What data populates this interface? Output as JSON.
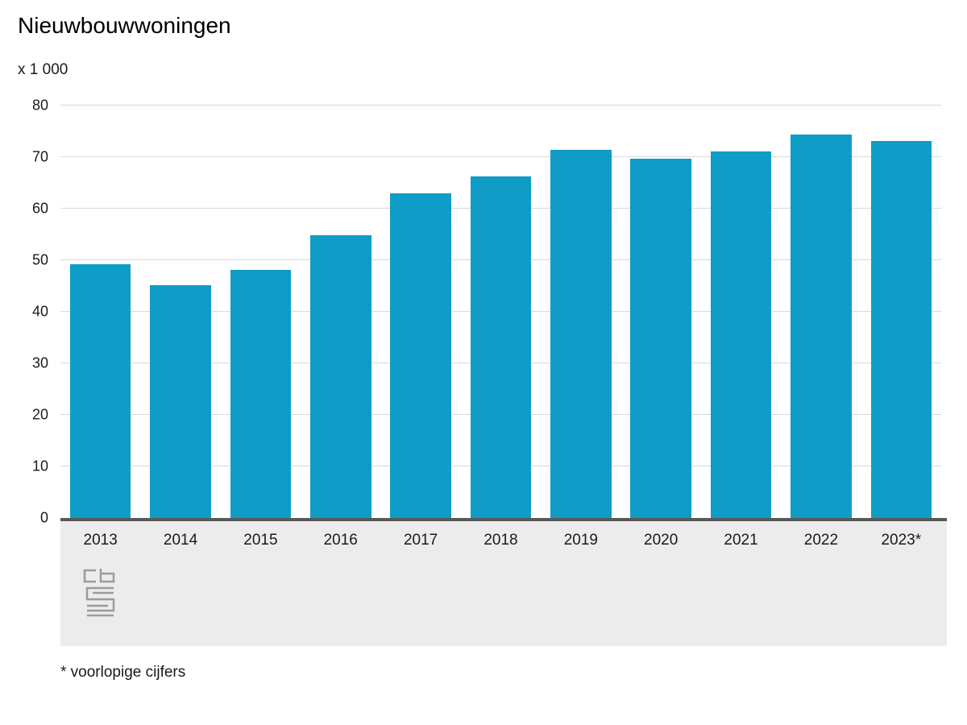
{
  "title": "Nieuwbouwwoningen",
  "unit_label": "x 1 000",
  "footnote": "* voorlopige cijfers",
  "logo_icon": "cbs-logo",
  "colors": {
    "bar": "#0f9dc7",
    "axis": "#595959",
    "gridline": "#d9d9d9",
    "band": "#ececec",
    "text": "#1a1a1a"
  },
  "chart_data": {
    "type": "bar",
    "title": "Nieuwbouwwoningen",
    "xlabel": "",
    "ylabel": "x 1 000",
    "categories": [
      "2013",
      "2014",
      "2015",
      "2016",
      "2017",
      "2018",
      "2019",
      "2020",
      "2021",
      "2022",
      "2023*"
    ],
    "values": [
      49.2,
      45.1,
      48.2,
      54.8,
      62.9,
      66.3,
      71.4,
      69.7,
      71.1,
      74.4,
      73.2
    ],
    "ylim": [
      0,
      80
    ],
    "yticks": [
      0,
      10,
      20,
      30,
      40,
      50,
      60,
      70,
      80
    ],
    "grid": true,
    "legend": "none",
    "footnote": "* voorlopige cijfers"
  }
}
